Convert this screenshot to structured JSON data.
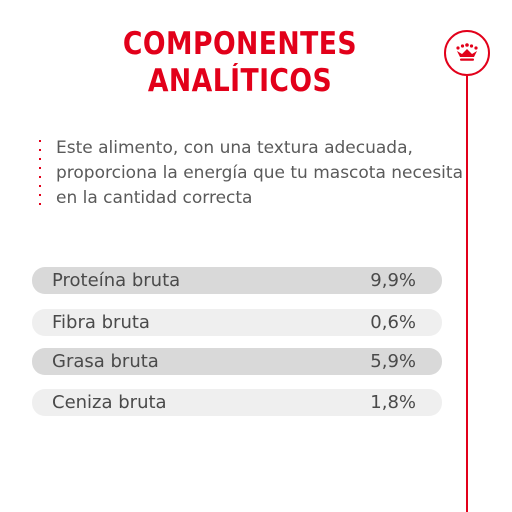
{
  "title": {
    "line1": "COMPONENTES",
    "line2": "ANALÍTICOS"
  },
  "brand": {
    "icon": "crown-icon",
    "accent_color": "#e2001a"
  },
  "description": {
    "line1": "Este alimento, con una textura adecuada,",
    "line2": "proporciona la energía que tu mascota necesita",
    "line3": "en la cantidad correcta"
  },
  "components": [
    {
      "name": "Proteína bruta",
      "value": "9,9%"
    },
    {
      "name": "Fibra bruta",
      "value": "0,6%"
    },
    {
      "name": "Grasa bruta",
      "value": "5,9%"
    },
    {
      "name": "Ceniza bruta",
      "value": "1,8%"
    }
  ]
}
